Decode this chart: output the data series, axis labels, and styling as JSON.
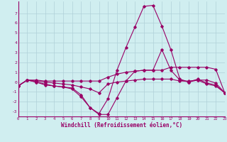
{
  "xlabel": "Windchill (Refroidissement éolien,°C)",
  "bg_color": "#d0eef0",
  "line_color": "#990066",
  "grid_color": "#b0d0d8",
  "xlim": [
    0,
    23
  ],
  "ylim": [
    -3.5,
    8.2
  ],
  "xticks": [
    0,
    1,
    2,
    3,
    4,
    5,
    6,
    7,
    8,
    9,
    10,
    11,
    12,
    13,
    14,
    15,
    16,
    17,
    18,
    19,
    20,
    21,
    22,
    23
  ],
  "yticks": [
    -3,
    -2,
    -1,
    0,
    1,
    2,
    3,
    4,
    5,
    6,
    7
  ],
  "lines": [
    {
      "x": [
        0,
        1,
        2,
        3,
        4,
        5,
        6,
        7,
        8,
        9,
        10,
        11,
        12,
        13,
        14,
        15,
        16,
        17,
        18,
        19,
        20,
        21,
        22,
        23
      ],
      "y": [
        -0.4,
        0.2,
        0.2,
        0.1,
        0.1,
        0.1,
        0.1,
        0.1,
        0.1,
        0.1,
        0.5,
        0.8,
        1.0,
        1.1,
        1.2,
        1.2,
        1.2,
        1.5,
        1.5,
        1.5,
        1.5,
        1.5,
        1.3,
        -1.1
      ]
    },
    {
      "x": [
        0,
        1,
        2,
        3,
        4,
        5,
        6,
        7,
        8,
        9,
        10,
        11,
        12,
        13,
        14,
        15,
        16,
        17,
        18,
        19,
        20,
        21,
        22,
        23
      ],
      "y": [
        -0.4,
        0.2,
        0.1,
        0.0,
        -0.1,
        -0.2,
        -0.3,
        -0.5,
        -0.7,
        -1.1,
        -0.2,
        0.0,
        0.1,
        0.2,
        0.3,
        0.3,
        0.3,
        0.3,
        0.1,
        0.1,
        0.2,
        0.2,
        -0.1,
        -1.1
      ]
    },
    {
      "x": [
        0,
        1,
        2,
        3,
        4,
        5,
        6,
        7,
        8,
        9,
        10,
        11,
        12,
        13,
        14,
        15,
        16,
        17,
        18,
        19,
        20,
        21,
        22,
        23
      ],
      "y": [
        -0.4,
        0.2,
        0.0,
        -0.3,
        -0.4,
        -0.5,
        -0.6,
        -1.3,
        -2.6,
        -3.3,
        -3.3,
        -1.6,
        0.1,
        1.1,
        1.2,
        1.2,
        3.3,
        1.2,
        0.2,
        0.0,
        0.3,
        -0.1,
        -0.3,
        -1.1
      ]
    },
    {
      "x": [
        0,
        1,
        2,
        3,
        4,
        5,
        6,
        7,
        8,
        9,
        10,
        11,
        12,
        13,
        14,
        15,
        16,
        17,
        18,
        19,
        20,
        21,
        22,
        23
      ],
      "y": [
        -0.4,
        0.2,
        0.0,
        -0.2,
        -0.4,
        -0.5,
        -0.7,
        -1.5,
        -2.6,
        -3.2,
        -1.7,
        1.2,
        3.5,
        5.6,
        7.7,
        7.8,
        5.7,
        3.3,
        0.3,
        0.0,
        0.2,
        -0.2,
        -0.4,
        -1.1
      ]
    }
  ]
}
